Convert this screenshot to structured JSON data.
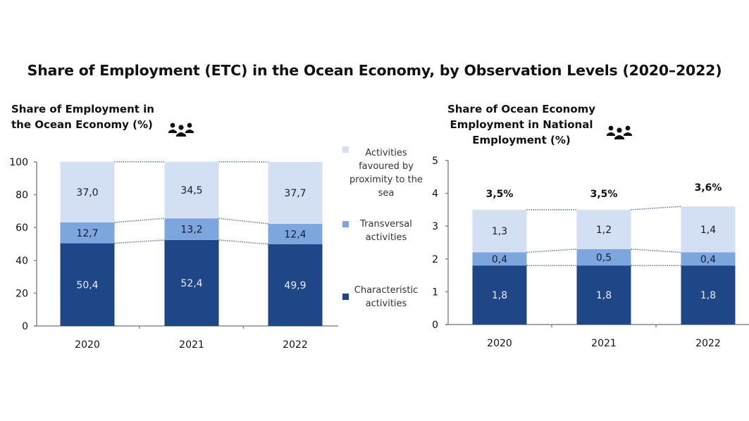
{
  "title": "Share of Employment (ETC) in the Ocean Economy, by Observation Levels (2020–2022)",
  "colors": {
    "characteristic": "#1f4788",
    "transversal": "#7ea6de",
    "proximity": "#d3dff3",
    "axis": "#8a8a8a",
    "connector": "#5a79a8"
  },
  "legend": [
    {
      "label": "Activities favoured by proximity to the sea",
      "key": "proximity"
    },
    {
      "label": "Transversal activities",
      "key": "transversal"
    },
    {
      "label": "Characteristic activities",
      "key": "characteristic"
    }
  ],
  "chart_data": [
    {
      "type": "bar",
      "stacked": true,
      "title": "Share of Employment in the Ocean Economy (%)",
      "title_lines": [
        "Share of Employment in",
        "the Ocean Economy (%)"
      ],
      "categories": [
        "2020",
        "2021",
        "2022"
      ],
      "series": [
        {
          "name": "Characteristic activities",
          "key": "characteristic",
          "values": [
            50.4,
            52.4,
            49.9
          ],
          "labels": [
            "50,4",
            "52,4",
            "49,9"
          ]
        },
        {
          "name": "Transversal activities",
          "key": "transversal",
          "values": [
            12.7,
            13.2,
            12.4
          ],
          "labels": [
            "12,7",
            "13,2",
            "12,4"
          ]
        },
        {
          "name": "Activities favoured by proximity to the sea",
          "key": "proximity",
          "values": [
            37.0,
            34.5,
            37.7
          ],
          "labels": [
            "37,0",
            "34,5",
            "37,7"
          ]
        }
      ],
      "yticks": [
        "0",
        "20",
        "40",
        "60",
        "80",
        "100"
      ],
      "ylim": [
        0,
        100
      ],
      "xlabel": "",
      "ylabel": "",
      "grid": false,
      "connectors": "dotted",
      "legend_position": "right"
    },
    {
      "type": "bar",
      "stacked": true,
      "title": "Share of Ocean Economy Employment in National Employment (%)",
      "title_lines": [
        "Share of Ocean Economy",
        "Employment in National",
        "Employment (%)"
      ],
      "categories": [
        "2020",
        "2021",
        "2022"
      ],
      "series": [
        {
          "name": "Characteristic activities",
          "key": "characteristic",
          "values": [
            1.8,
            1.8,
            1.8
          ],
          "labels": [
            "1,8",
            "1,8",
            "1,8"
          ]
        },
        {
          "name": "Transversal activities",
          "key": "transversal",
          "values": [
            0.4,
            0.5,
            0.4
          ],
          "labels": [
            "0,4",
            "0,5",
            "0,4"
          ]
        },
        {
          "name": "Activities favoured by proximity to the sea",
          "key": "proximity",
          "values": [
            1.3,
            1.2,
            1.4
          ],
          "labels": [
            "1,3",
            "1,2",
            "1,4"
          ]
        }
      ],
      "totals": [
        3.5,
        3.5,
        3.6
      ],
      "total_labels": [
        "3,5%",
        "3,5%",
        "3,6%"
      ],
      "yticks": [
        "0",
        "1",
        "2",
        "3",
        "4",
        "5"
      ],
      "ylim": [
        0,
        5
      ],
      "xlabel": "",
      "ylabel": "",
      "grid": false,
      "connectors": "dotted"
    }
  ]
}
